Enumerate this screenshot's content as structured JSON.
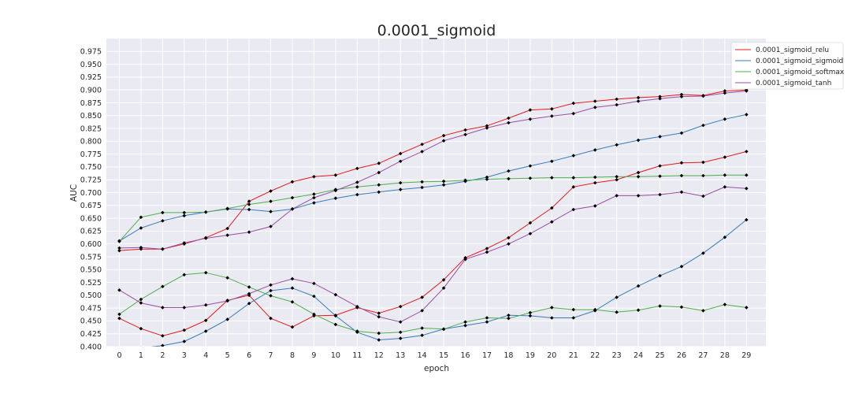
{
  "chart_data": {
    "type": "line",
    "title": "0.0001_sigmoid",
    "xlabel": "epoch",
    "ylabel": "AUC",
    "x": [
      0,
      1,
      2,
      3,
      4,
      5,
      6,
      7,
      8,
      9,
      10,
      11,
      12,
      13,
      14,
      15,
      16,
      17,
      18,
      19,
      20,
      21,
      22,
      23,
      24,
      25,
      26,
      27,
      28,
      29
    ],
    "x_ticks": [
      "0",
      "1",
      "2",
      "3",
      "4",
      "5",
      "6",
      "7",
      "8",
      "9",
      "10",
      "11",
      "12",
      "13",
      "14",
      "15",
      "16",
      "17",
      "18",
      "19",
      "20",
      "21",
      "22",
      "23",
      "24",
      "25",
      "26",
      "27",
      "28",
      "29"
    ],
    "xlim": [
      -0.6,
      29.9
    ],
    "ylim": [
      0.4,
      1.0
    ],
    "y_ticks": [
      "0.400",
      "0.425",
      "0.450",
      "0.475",
      "0.500",
      "0.525",
      "0.550",
      "0.575",
      "0.600",
      "0.625",
      "0.650",
      "0.675",
      "0.700",
      "0.725",
      "0.750",
      "0.775",
      "0.800",
      "0.825",
      "0.850",
      "0.875",
      "0.900",
      "0.925",
      "0.950",
      "0.975"
    ],
    "grid": true,
    "legend_position": "top-right",
    "series": [
      {
        "name": "0.0001_sigmoid_relu",
        "color": "#e41a1c",
        "values": [
          0.587,
          0.59,
          0.59,
          0.6,
          0.612,
          0.63,
          0.683,
          0.703,
          0.721,
          0.731,
          0.734,
          0.747,
          0.757,
          0.776,
          0.794,
          0.811,
          0.822,
          0.83,
          0.845,
          0.861,
          0.863,
          0.874,
          0.878,
          0.882,
          0.885,
          0.887,
          0.891,
          0.889,
          0.898,
          0.9
        ]
      },
      {
        "name": "0.0001_sigmoid_relu",
        "color": "#e41a1c",
        "values": [
          0.455,
          0.435,
          0.421,
          0.432,
          0.451,
          0.49,
          0.5,
          0.455,
          0.438,
          0.46,
          0.461,
          0.476,
          0.465,
          0.478,
          0.496,
          0.53,
          0.573,
          0.591,
          0.612,
          0.641,
          0.67,
          0.711,
          0.719,
          0.725,
          0.739,
          0.752,
          0.758,
          0.759,
          0.769,
          0.78
        ]
      },
      {
        "name": "0.0001_sigmoid_sigmoid",
        "color": "#377eb8",
        "values": [
          0.606,
          0.631,
          0.645,
          0.655,
          0.662,
          0.668,
          0.667,
          0.663,
          0.668,
          0.68,
          0.689,
          0.696,
          0.701,
          0.706,
          0.71,
          0.715,
          0.722,
          0.73,
          0.742,
          0.752,
          0.761,
          0.772,
          0.783,
          0.793,
          0.802,
          0.809,
          0.816,
          0.831,
          0.843,
          0.852
        ]
      },
      {
        "name": "0.0001_sigmoid_sigmoid",
        "color": "#377eb8",
        "values": [
          0.38,
          0.397,
          0.402,
          0.41,
          0.43,
          0.453,
          0.484,
          0.509,
          0.514,
          0.498,
          0.46,
          0.428,
          0.413,
          0.416,
          0.422,
          0.434,
          0.441,
          0.448,
          0.461,
          0.46,
          0.456,
          0.456,
          0.47,
          0.496,
          0.518,
          0.538,
          0.556,
          0.582,
          0.613,
          0.647
        ]
      },
      {
        "name": "0.0001_sigmoid_softmax",
        "color": "#4daf4a",
        "values": [
          0.605,
          0.652,
          0.661,
          0.661,
          0.662,
          0.669,
          0.677,
          0.683,
          0.69,
          0.697,
          0.706,
          0.711,
          0.715,
          0.719,
          0.721,
          0.722,
          0.724,
          0.726,
          0.727,
          0.728,
          0.729,
          0.729,
          0.73,
          0.731,
          0.731,
          0.732,
          0.733,
          0.733,
          0.734,
          0.734
        ]
      },
      {
        "name": "0.0001_sigmoid_softmax",
        "color": "#4daf4a",
        "values": [
          0.463,
          0.492,
          0.517,
          0.54,
          0.544,
          0.534,
          0.516,
          0.499,
          0.487,
          0.463,
          0.443,
          0.43,
          0.426,
          0.428,
          0.436,
          0.434,
          0.448,
          0.456,
          0.455,
          0.466,
          0.476,
          0.472,
          0.472,
          0.467,
          0.471,
          0.479,
          0.477,
          0.47,
          0.482,
          0.476
        ]
      },
      {
        "name": "0.0001_sigmoid_tanh",
        "color": "#984ea3",
        "values": [
          0.592,
          0.593,
          0.59,
          0.602,
          0.611,
          0.617,
          0.623,
          0.634,
          0.668,
          0.69,
          0.704,
          0.72,
          0.739,
          0.761,
          0.78,
          0.801,
          0.813,
          0.826,
          0.836,
          0.843,
          0.849,
          0.854,
          0.866,
          0.871,
          0.878,
          0.883,
          0.887,
          0.888,
          0.894,
          0.898
        ]
      },
      {
        "name": "0.0001_sigmoid_tanh",
        "color": "#984ea3",
        "values": [
          0.51,
          0.485,
          0.476,
          0.476,
          0.481,
          0.489,
          0.503,
          0.52,
          0.532,
          0.523,
          0.501,
          0.478,
          0.458,
          0.448,
          0.47,
          0.514,
          0.57,
          0.584,
          0.6,
          0.62,
          0.643,
          0.667,
          0.674,
          0.694,
          0.694,
          0.696,
          0.701,
          0.693,
          0.711,
          0.708
        ]
      }
    ],
    "legend": [
      {
        "label": "0.0001_sigmoid_relu",
        "color": "#e41a1c"
      },
      {
        "label": "0.0001_sigmoid_sigmoid",
        "color": "#377eb8"
      },
      {
        "label": "0.0001_sigmoid_softmax",
        "color": "#4daf4a"
      },
      {
        "label": "0.0001_sigmoid_tanh",
        "color": "#984ea3"
      }
    ]
  }
}
